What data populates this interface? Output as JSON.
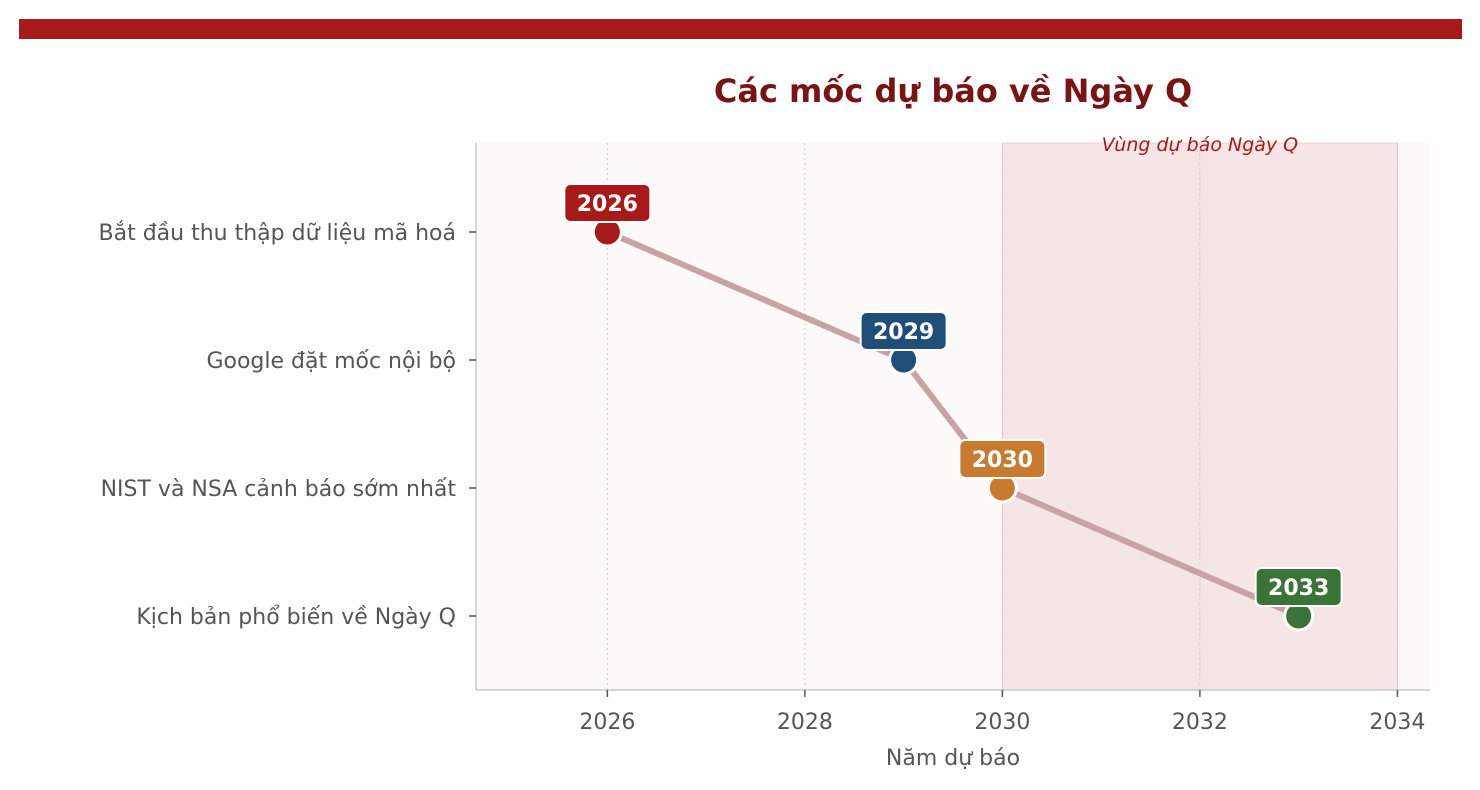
{
  "chart_data": {
    "type": "line",
    "title": "Các mốc dự báo về Ngày Q",
    "xlabel": "Năm dự báo",
    "ylabel": "",
    "xlim": [
      2024.67,
      2034.33
    ],
    "xticks": [
      2026,
      2028,
      2030,
      2032,
      2034
    ],
    "grid": "vertical dotted",
    "categories": [
      "Bắt đầu thu thập dữ liệu mã hoá",
      "Google đặt mốc nội bộ",
      "NIST và NSA cảnh báo sớm nhất",
      "Kịch bản phổ biến về Ngày Q"
    ],
    "points": [
      {
        "y": "Bắt đầu thu thập dữ liệu mã hoá",
        "x": 2026,
        "label": "2026",
        "color": "#a8191a"
      },
      {
        "y": "Google đặt mốc nội bộ",
        "x": 2029,
        "label": "2029",
        "color": "#1f4e79"
      },
      {
        "y": "NIST và NSA cảnh báo sớm nhất",
        "x": 2030,
        "label": "2030",
        "color": "#c87a2e"
      },
      {
        "y": "Kịch bản phổ biến về Ngày Q",
        "x": 2033,
        "label": "2033",
        "color": "#3a7439"
      }
    ],
    "shaded_region": {
      "x_from": 2030,
      "x_to": 2034,
      "label": "Vùng dự báo Ngày Q",
      "color": "#f5e6e5"
    },
    "line_color": "#c9a2a3",
    "accent_color": "#a8191a",
    "plot_background": "#fcfaf9"
  }
}
